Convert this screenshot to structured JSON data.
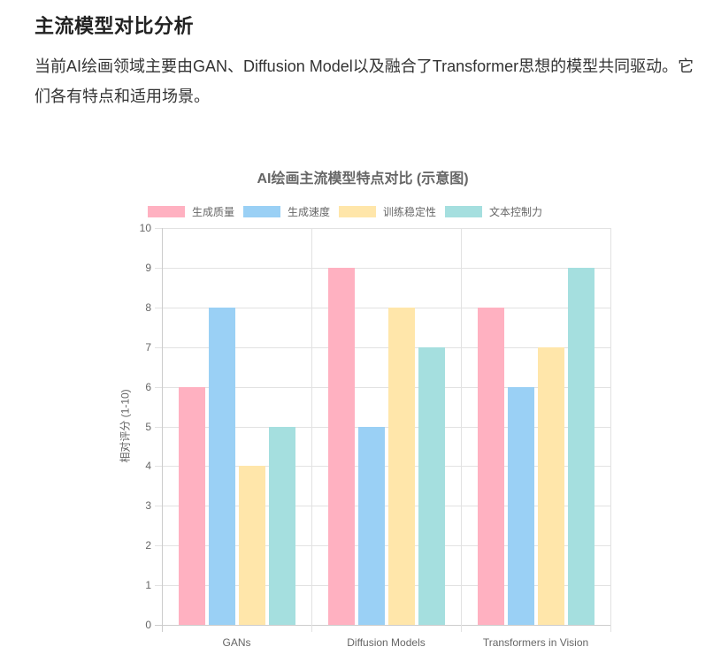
{
  "section": {
    "heading": "主流模型对比分析",
    "paragraph": "当前AI绘画领域主要由GAN、Diffusion Model以及融合了Transformer思想的模型共同驱动。它们各有特点和适用场景。"
  },
  "chart_data": {
    "type": "bar",
    "title": "AI绘画主流模型特点对比 (示意图)",
    "xlabel": "",
    "ylabel": "相对评分 (1-10)",
    "ylim": [
      0,
      10
    ],
    "yticks": [
      0,
      1,
      2,
      3,
      4,
      5,
      6,
      7,
      8,
      9,
      10
    ],
    "grid": true,
    "legend_position": "top",
    "categories": [
      "GANs",
      "Diffusion Models",
      "Transformers in Vision"
    ],
    "series": [
      {
        "name": "生成质量",
        "color": "#ffb1c1",
        "values": [
          6,
          9,
          8
        ]
      },
      {
        "name": "生成速度",
        "color": "#9ad0f5",
        "values": [
          8,
          5,
          6
        ]
      },
      {
        "name": "训练稳定性",
        "color": "#ffe6aa",
        "values": [
          4,
          8,
          7
        ]
      },
      {
        "name": "文本控制力",
        "color": "#a5dfdf",
        "values": [
          5,
          7,
          9
        ]
      }
    ]
  }
}
